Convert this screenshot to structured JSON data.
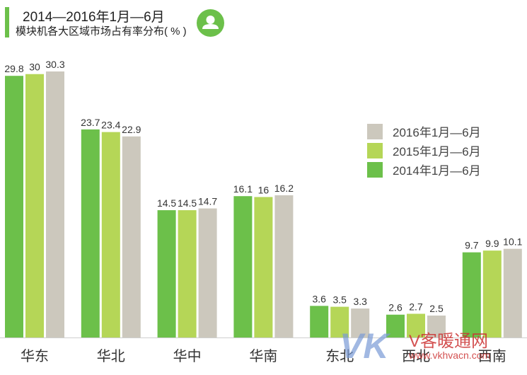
{
  "header": {
    "title_line1": "2014—2016年1月—6月",
    "title_line2": "模块机各大区域市场占有率分布( % )",
    "badge_icon": "user-icon"
  },
  "watermark": {
    "letters": "VK",
    "brand": "V客暖通网",
    "url": "www.vkhvacn.com"
  },
  "chart_data": {
    "type": "bar",
    "categories": [
      "华东",
      "华北",
      "华中",
      "华南",
      "东北",
      "西北",
      "西南"
    ],
    "series": [
      {
        "name": "2014年1月—6月",
        "color": "#6cc04a",
        "values": [
          29.8,
          23.7,
          14.5,
          16.1,
          3.6,
          2.6,
          9.7
        ]
      },
      {
        "name": "2015年1月—6月",
        "color": "#b5d657",
        "values": [
          30,
          23.4,
          14.5,
          16,
          3.5,
          2.7,
          9.9
        ]
      },
      {
        "name": "2016年1月—6月",
        "color": "#ccc8bd",
        "values": [
          30.3,
          22.9,
          14.7,
          16.2,
          3.3,
          2.5,
          10.1
        ]
      }
    ],
    "legend_order": [
      "2016年1月—6月",
      "2015年1月—6月",
      "2014年1月—6月"
    ],
    "legend_position": "right",
    "ylim": [
      0,
      30.3
    ],
    "grid": false,
    "data_labels": true
  }
}
